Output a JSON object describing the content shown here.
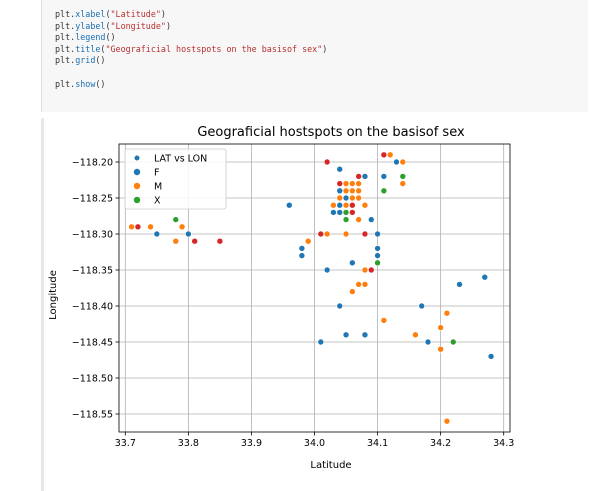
{
  "code": {
    "lines": [
      {
        "obj": "plt",
        "fn": "xlabel",
        "arg": "\"Latitude\""
      },
      {
        "obj": "plt",
        "fn": "ylabel",
        "arg": "\"Longitude\""
      },
      {
        "obj": "plt",
        "fn": "legend",
        "arg": ""
      },
      {
        "obj": "plt",
        "fn": "title",
        "arg": "\"Geograficial hostspots on the basisof sex\""
      },
      {
        "obj": "plt",
        "fn": "grid",
        "arg": ""
      },
      {
        "obj": "",
        "fn": "",
        "arg": ""
      },
      {
        "obj": "plt",
        "fn": "show",
        "arg": ""
      }
    ]
  },
  "colors": {
    "F": "#1f77b4",
    "M": "#ff7f0e",
    "X": "#2ca02c",
    "red": "#d62728"
  },
  "chart_data": {
    "type": "scatter",
    "title": "Geograficial hostspots on the basisof sex",
    "xlabel": "Latitude",
    "ylabel": "Longitude",
    "xlim": [
      33.69,
      34.31
    ],
    "ylim": [
      -118.575,
      -118.175
    ],
    "xticks": [
      "33.7",
      "33.8",
      "33.9",
      "34.0",
      "34.1",
      "34.2",
      "34.3"
    ],
    "xtick_values": [
      33.7,
      33.8,
      33.9,
      34.0,
      34.1,
      34.2,
      34.3
    ],
    "yticks": [
      "−118.20",
      "−118.25",
      "−118.30",
      "−118.35",
      "−118.40",
      "−118.45",
      "−118.50",
      "−118.55"
    ],
    "ytick_values": [
      -118.2,
      -118.25,
      -118.3,
      -118.35,
      -118.4,
      -118.45,
      -118.5,
      -118.55
    ],
    "grid": true,
    "legend_position": "top-left",
    "legend": [
      {
        "label": "LAT vs LON",
        "color": "#1f77b4"
      },
      {
        "label": "F",
        "color": "#1f77b4"
      },
      {
        "label": "M",
        "color": "#ff7f0e"
      },
      {
        "label": "X",
        "color": "#2ca02c"
      }
    ],
    "points": [
      {
        "x": 33.71,
        "y": -118.29,
        "c": "M"
      },
      {
        "x": 33.72,
        "y": -118.29,
        "c": "red"
      },
      {
        "x": 33.74,
        "y": -118.29,
        "c": "M"
      },
      {
        "x": 33.75,
        "y": -118.3,
        "c": "F"
      },
      {
        "x": 33.78,
        "y": -118.28,
        "c": "X"
      },
      {
        "x": 33.79,
        "y": -118.29,
        "c": "M"
      },
      {
        "x": 33.8,
        "y": -118.3,
        "c": "F"
      },
      {
        "x": 33.78,
        "y": -118.31,
        "c": "M"
      },
      {
        "x": 33.81,
        "y": -118.31,
        "c": "red"
      },
      {
        "x": 33.85,
        "y": -118.31,
        "c": "red"
      },
      {
        "x": 33.96,
        "y": -118.26,
        "c": "F"
      },
      {
        "x": 33.98,
        "y": -118.32,
        "c": "F"
      },
      {
        "x": 33.98,
        "y": -118.33,
        "c": "F"
      },
      {
        "x": 33.99,
        "y": -118.31,
        "c": "M"
      },
      {
        "x": 34.01,
        "y": -118.3,
        "c": "red"
      },
      {
        "x": 34.02,
        "y": -118.3,
        "c": "M"
      },
      {
        "x": 34.02,
        "y": -118.2,
        "c": "red"
      },
      {
        "x": 34.02,
        "y": -118.35,
        "c": "F"
      },
      {
        "x": 34.01,
        "y": -118.45,
        "c": "F"
      },
      {
        "x": 34.04,
        "y": -118.21,
        "c": "F"
      },
      {
        "x": 34.04,
        "y": -118.23,
        "c": "red"
      },
      {
        "x": 34.05,
        "y": -118.23,
        "c": "M"
      },
      {
        "x": 34.06,
        "y": -118.23,
        "c": "M"
      },
      {
        "x": 34.07,
        "y": -118.23,
        "c": "M"
      },
      {
        "x": 34.04,
        "y": -118.24,
        "c": "F"
      },
      {
        "x": 34.05,
        "y": -118.24,
        "c": "M"
      },
      {
        "x": 34.06,
        "y": -118.24,
        "c": "M"
      },
      {
        "x": 34.07,
        "y": -118.24,
        "c": "M"
      },
      {
        "x": 34.04,
        "y": -118.25,
        "c": "M"
      },
      {
        "x": 34.05,
        "y": -118.25,
        "c": "F"
      },
      {
        "x": 34.06,
        "y": -118.25,
        "c": "M"
      },
      {
        "x": 34.07,
        "y": -118.25,
        "c": "M"
      },
      {
        "x": 34.03,
        "y": -118.26,
        "c": "M"
      },
      {
        "x": 34.04,
        "y": -118.26,
        "c": "F"
      },
      {
        "x": 34.05,
        "y": -118.26,
        "c": "M"
      },
      {
        "x": 34.06,
        "y": -118.26,
        "c": "red"
      },
      {
        "x": 34.08,
        "y": -118.26,
        "c": "M"
      },
      {
        "x": 34.03,
        "y": -118.27,
        "c": "F"
      },
      {
        "x": 34.04,
        "y": -118.27,
        "c": "F"
      },
      {
        "x": 34.05,
        "y": -118.27,
        "c": "X"
      },
      {
        "x": 34.06,
        "y": -118.27,
        "c": "red"
      },
      {
        "x": 34.05,
        "y": -118.28,
        "c": "X"
      },
      {
        "x": 34.07,
        "y": -118.28,
        "c": "M"
      },
      {
        "x": 34.09,
        "y": -118.28,
        "c": "F"
      },
      {
        "x": 34.05,
        "y": -118.3,
        "c": "M"
      },
      {
        "x": 34.08,
        "y": -118.3,
        "c": "red"
      },
      {
        "x": 34.1,
        "y": -118.3,
        "c": "F"
      },
      {
        "x": 34.1,
        "y": -118.32,
        "c": "F"
      },
      {
        "x": 34.1,
        "y": -118.33,
        "c": "F"
      },
      {
        "x": 34.1,
        "y": -118.34,
        "c": "X"
      },
      {
        "x": 34.06,
        "y": -118.34,
        "c": "F"
      },
      {
        "x": 34.08,
        "y": -118.35,
        "c": "M"
      },
      {
        "x": 34.09,
        "y": -118.35,
        "c": "red"
      },
      {
        "x": 34.07,
        "y": -118.37,
        "c": "M"
      },
      {
        "x": 34.08,
        "y": -118.37,
        "c": "M"
      },
      {
        "x": 34.06,
        "y": -118.38,
        "c": "M"
      },
      {
        "x": 34.04,
        "y": -118.4,
        "c": "F"
      },
      {
        "x": 34.07,
        "y": -118.22,
        "c": "red"
      },
      {
        "x": 34.08,
        "y": -118.22,
        "c": "F"
      },
      {
        "x": 34.11,
        "y": -118.19,
        "c": "red"
      },
      {
        "x": 34.12,
        "y": -118.19,
        "c": "M"
      },
      {
        "x": 34.13,
        "y": -118.2,
        "c": "F"
      },
      {
        "x": 34.14,
        "y": -118.2,
        "c": "M"
      },
      {
        "x": 34.11,
        "y": -118.22,
        "c": "F"
      },
      {
        "x": 34.14,
        "y": -118.22,
        "c": "X"
      },
      {
        "x": 34.14,
        "y": -118.23,
        "c": "M"
      },
      {
        "x": 34.11,
        "y": -118.24,
        "c": "X"
      },
      {
        "x": 34.05,
        "y": -118.44,
        "c": "F"
      },
      {
        "x": 34.08,
        "y": -118.44,
        "c": "F"
      },
      {
        "x": 34.11,
        "y": -118.42,
        "c": "M"
      },
      {
        "x": 34.17,
        "y": -118.4,
        "c": "F"
      },
      {
        "x": 34.16,
        "y": -118.44,
        "c": "M"
      },
      {
        "x": 34.18,
        "y": -118.45,
        "c": "F"
      },
      {
        "x": 34.2,
        "y": -118.43,
        "c": "M"
      },
      {
        "x": 34.21,
        "y": -118.41,
        "c": "M"
      },
      {
        "x": 34.2,
        "y": -118.46,
        "c": "M"
      },
      {
        "x": 34.22,
        "y": -118.45,
        "c": "X"
      },
      {
        "x": 34.23,
        "y": -118.37,
        "c": "F"
      },
      {
        "x": 34.27,
        "y": -118.36,
        "c": "F"
      },
      {
        "x": 34.28,
        "y": -118.47,
        "c": "F"
      },
      {
        "x": 34.21,
        "y": -118.56,
        "c": "M"
      }
    ]
  }
}
